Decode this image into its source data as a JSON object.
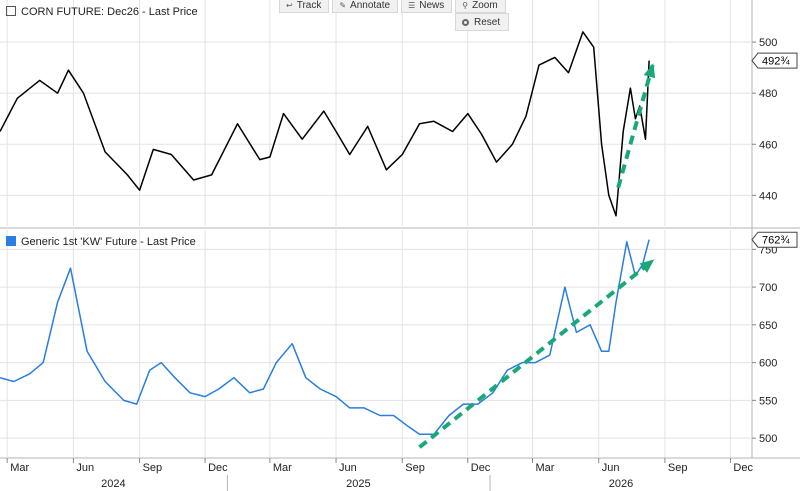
{
  "toolbar": {
    "buttons": [
      {
        "icon": "back-arrow-icon",
        "label": "Track"
      },
      {
        "icon": "pencil-icon",
        "label": "Annotate"
      },
      {
        "icon": "news-icon",
        "label": "News"
      },
      {
        "icon": "magnifier-icon",
        "label": "Zoom"
      }
    ],
    "reset_label": "Reset",
    "reset_icon": "circle-icon"
  },
  "chart_data": [
    {
      "type": "line",
      "legend": "CORN FUTURE: Dec26 - Last Price",
      "legend_marker": "hollow-square",
      "color": "#000000",
      "yticks": [
        440,
        460,
        480,
        500
      ],
      "ylim": [
        428,
        511
      ],
      "last_value_label": "492¾",
      "series": [
        {
          "name": "CORN FUTURE: Dec26 - Last Price",
          "x": [
            "2024-02-20",
            "2024-03-15",
            "2024-04-15",
            "2024-05-10",
            "2024-05-25",
            "2024-06-15",
            "2024-07-15",
            "2024-08-15",
            "2024-09-01",
            "2024-09-20",
            "2024-10-15",
            "2024-11-15",
            "2024-12-10",
            "2025-01-15",
            "2025-02-15",
            "2025-03-01",
            "2025-03-20",
            "2025-04-15",
            "2025-05-15",
            "2025-06-01",
            "2025-06-20",
            "2025-07-15",
            "2025-08-10",
            "2025-09-01",
            "2025-09-25",
            "2025-10-15",
            "2025-11-10",
            "2025-12-01",
            "2025-12-20",
            "2026-01-10",
            "2026-02-01",
            "2026-02-20",
            "2026-03-10",
            "2026-04-01",
            "2026-04-20",
            "2026-05-10",
            "2026-05-25",
            "2026-06-05",
            "2026-06-15",
            "2026-06-25",
            "2026-07-05",
            "2026-07-15",
            "2026-07-22",
            "2026-07-28",
            "2026-08-05",
            "2026-08-10"
          ],
          "y": [
            465,
            478,
            485,
            480,
            489,
            480,
            457,
            448,
            442,
            458,
            456,
            446,
            448,
            468,
            454,
            455,
            472,
            462,
            473,
            465,
            456,
            467,
            450,
            456,
            468,
            469,
            465,
            472,
            464,
            453,
            460,
            471,
            491,
            494,
            488,
            504,
            498,
            460,
            440,
            432,
            465,
            482,
            470,
            475,
            462,
            492.75
          ]
        }
      ],
      "annotation": {
        "type": "dashed-arrow",
        "color": "#1aa87a",
        "from": [
          "2026-06-28",
          443
        ],
        "to": [
          "2026-08-15",
          491
        ]
      }
    },
    {
      "type": "line",
      "legend": "Generic 1st 'KW' Future - Last Price",
      "legend_marker": "filled-square",
      "color": "#2a7de1",
      "yticks": [
        500,
        550,
        600,
        650,
        700,
        750
      ],
      "ylim": [
        475,
        765
      ],
      "last_value_label": "762¾",
      "series": [
        {
          "name": "Generic 1st 'KW' Future - Last Price",
          "x": [
            "2024-02-20",
            "2024-03-10",
            "2024-04-01",
            "2024-04-20",
            "2024-05-10",
            "2024-05-28",
            "2024-06-20",
            "2024-07-15",
            "2024-08-10",
            "2024-08-28",
            "2024-09-15",
            "2024-10-01",
            "2024-10-20",
            "2024-11-10",
            "2024-12-01",
            "2024-12-20",
            "2025-01-10",
            "2025-02-01",
            "2025-02-20",
            "2025-03-10",
            "2025-04-01",
            "2025-04-20",
            "2025-05-10",
            "2025-06-01",
            "2025-06-20",
            "2025-07-10",
            "2025-08-01",
            "2025-08-20",
            "2025-09-10",
            "2025-09-25",
            "2025-10-15",
            "2025-11-05",
            "2025-11-25",
            "2025-12-15",
            "2026-01-05",
            "2026-01-25",
            "2026-02-15",
            "2026-03-05",
            "2026-03-25",
            "2026-04-15",
            "2026-05-01",
            "2026-05-20",
            "2026-06-05",
            "2026-06-15",
            "2026-06-25",
            "2026-07-10",
            "2026-07-22",
            "2026-08-01",
            "2026-08-10"
          ],
          "y": [
            580,
            575,
            585,
            600,
            680,
            725,
            615,
            575,
            550,
            545,
            590,
            600,
            580,
            560,
            555,
            565,
            580,
            560,
            565,
            600,
            625,
            580,
            565,
            555,
            540,
            540,
            530,
            530,
            515,
            505,
            505,
            530,
            545,
            545,
            560,
            590,
            600,
            600,
            610,
            700,
            640,
            650,
            615,
            615,
            680,
            760,
            715,
            730,
            762.75
          ]
        }
      ],
      "annotation": {
        "type": "dashed-arrow",
        "color": "#1aa87a",
        "from": [
          "2025-09-25",
          488
        ],
        "to": [
          "2026-08-15",
          735
        ]
      }
    }
  ],
  "x_axis": {
    "months": [
      "Mar",
      "Jun",
      "Sep",
      "Dec",
      "Mar",
      "Jun",
      "Sep",
      "Dec",
      "Mar",
      "Jun",
      "Sep",
      "Dec"
    ],
    "years": [
      "2024",
      "2025",
      "2026"
    ],
    "start": "2024-02-20",
    "end": "2026-12-31"
  }
}
